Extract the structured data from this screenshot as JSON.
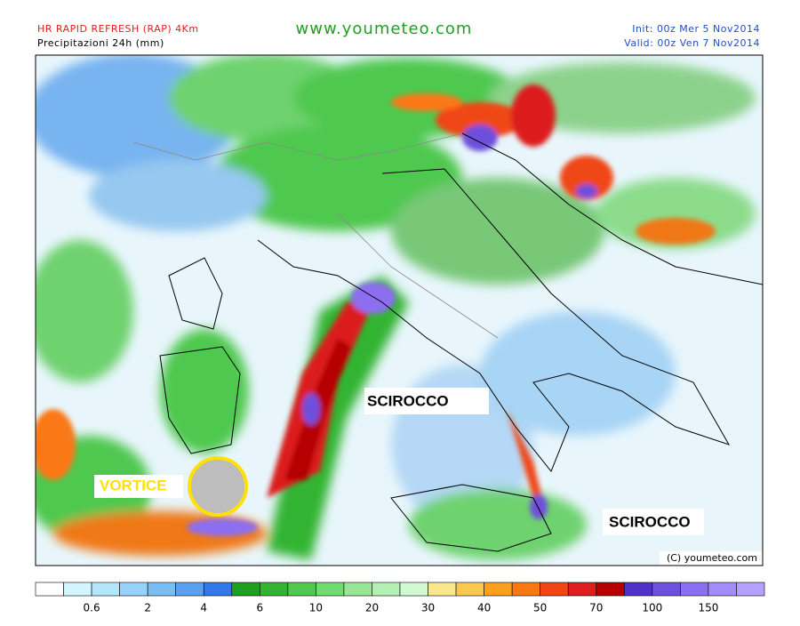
{
  "header": {
    "model": "HR RAPID REFRESH (RAP) 4Km",
    "field": "Precipitazioni 24h (mm)",
    "site": "www.youmeteo.com",
    "init": "Init: 00z Mer  5  Nov2014",
    "valid": "Valid: 00z Ven  7  Nov2014"
  },
  "annotations": {
    "scirocco_1": "SCIROCCO",
    "scirocco_2": "SCIROCCO",
    "vortice": "VORTICE",
    "copyright": "(C)  youmeteo.com"
  },
  "colorbar": {
    "colors": [
      "#ffffff",
      "#d2f5ff",
      "#b4e6fa",
      "#96d2fa",
      "#78bef5",
      "#5aa0f0",
      "#3278e6",
      "#1ea01e",
      "#32b432",
      "#50c850",
      "#6edc6e",
      "#96e696",
      "#b4f0b4",
      "#d2fad2",
      "#fae68c",
      "#fac850",
      "#faa01e",
      "#fa7814",
      "#f04614",
      "#dc1e1e",
      "#b40000",
      "#5032c8",
      "#6e50dc",
      "#8c6ef0",
      "#a08cfa",
      "#b4a0ff"
    ],
    "labels": [
      0.6,
      2,
      4,
      6,
      10,
      20,
      30,
      40,
      50,
      70,
      100,
      150
    ]
  }
}
